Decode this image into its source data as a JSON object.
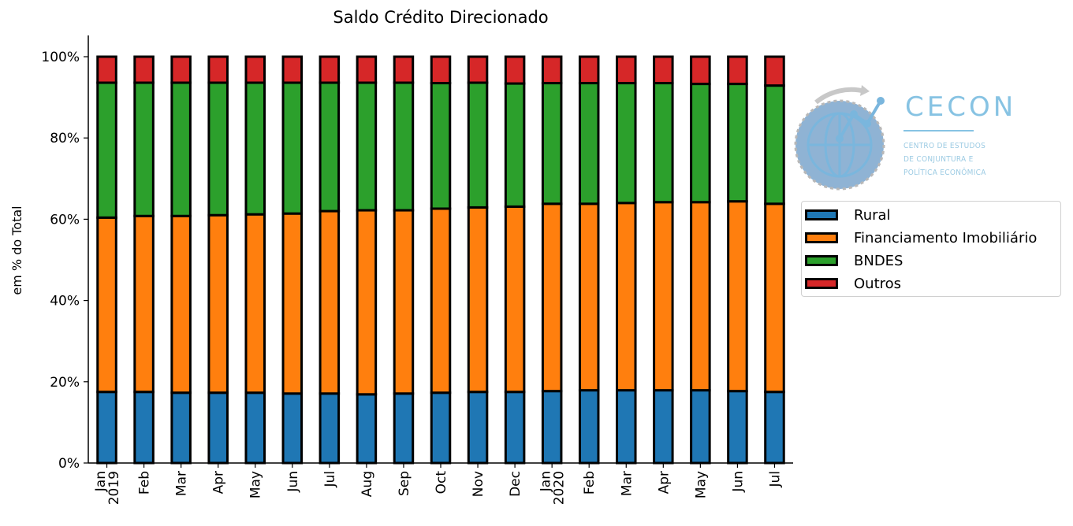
{
  "chart_data": {
    "type": "bar",
    "stacked": true,
    "title": "Saldo Crédito Direcionado",
    "ylabel": "em % do Total",
    "xlabel": "",
    "ylim": [
      0,
      105
    ],
    "yticks": [
      "0%",
      "20%",
      "40%",
      "60%",
      "80%",
      "100%"
    ],
    "ytick_values": [
      0,
      20,
      40,
      60,
      80,
      100
    ],
    "categories": [
      "Jan\n2019",
      "Feb",
      "Mar",
      "Apr",
      "May",
      "Jun",
      "Jul",
      "Aug",
      "Sep",
      "Oct",
      "Nov",
      "Dec",
      "Jan\n2020",
      "Feb",
      "Mar",
      "Apr",
      "May",
      "Jun",
      "Jul"
    ],
    "series": [
      {
        "name": "Rural",
        "color": "#1f77b4",
        "values": [
          17.5,
          17.5,
          17.3,
          17.3,
          17.3,
          17.1,
          17.1,
          16.9,
          17.1,
          17.3,
          17.5,
          17.5,
          17.7,
          17.9,
          17.9,
          17.9,
          17.9,
          17.7,
          17.5
        ]
      },
      {
        "name": "Financiamento Imobiliário",
        "color": "#ff7f0e",
        "values": [
          42.9,
          43.3,
          43.5,
          43.7,
          43.9,
          44.3,
          44.9,
          45.3,
          45.1,
          45.3,
          45.4,
          45.6,
          46.1,
          45.9,
          46.1,
          46.3,
          46.3,
          46.7,
          46.3
        ]
      },
      {
        "name": "BNDES",
        "color": "#2ca02c",
        "values": [
          33.2,
          32.8,
          32.8,
          32.6,
          32.4,
          32.2,
          31.6,
          31.4,
          31.4,
          30.9,
          30.7,
          30.3,
          29.7,
          29.7,
          29.5,
          29.3,
          29.1,
          28.9,
          29.1
        ]
      },
      {
        "name": "Outros",
        "color": "#d62728",
        "values": [
          6.4,
          6.4,
          6.4,
          6.4,
          6.4,
          6.4,
          6.4,
          6.4,
          6.4,
          6.5,
          6.4,
          6.6,
          6.5,
          6.5,
          6.5,
          6.5,
          6.7,
          6.7,
          7.1
        ]
      }
    ],
    "legend_position": "right",
    "grid": false
  },
  "logo": {
    "name": "CECON",
    "subtitle_lines": [
      "CENTRO DE ESTUDOS",
      "DE CONJUNTURA E",
      "POLÍTICA ECONÔMICA"
    ]
  }
}
